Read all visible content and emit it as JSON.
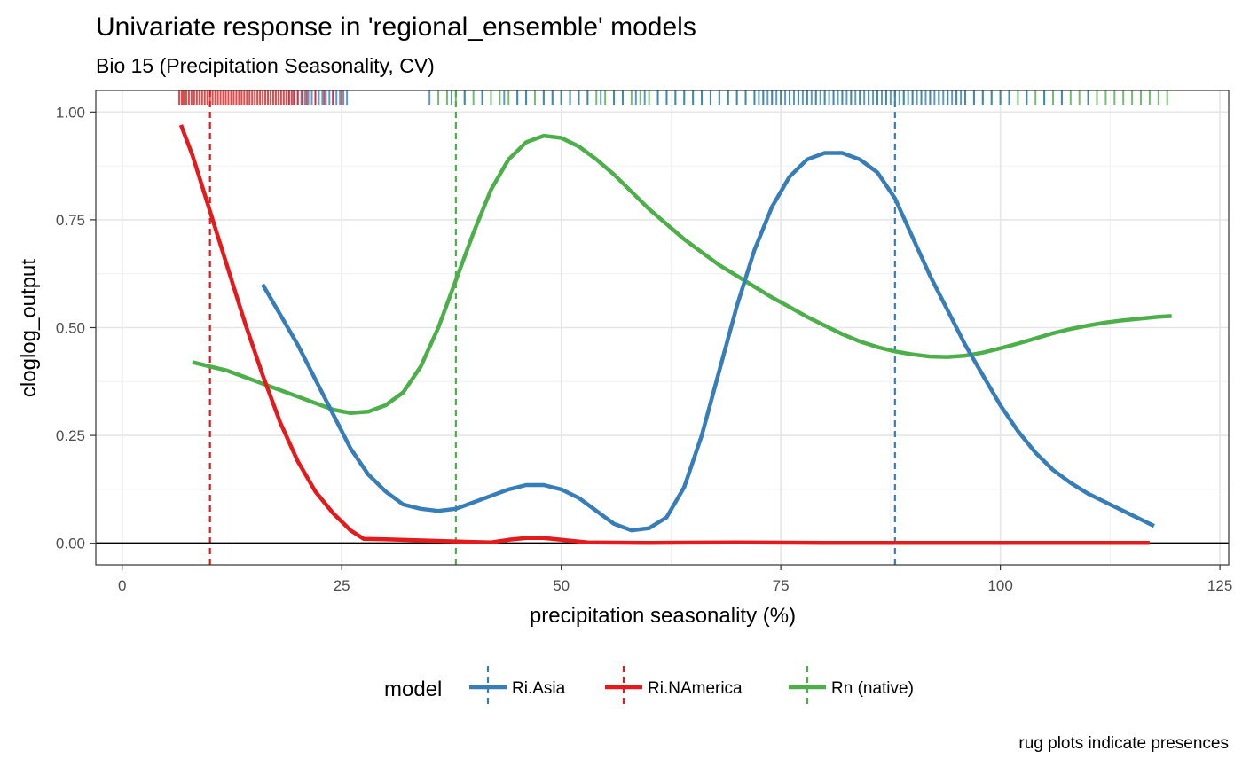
{
  "chart_data": {
    "type": "line",
    "title": "Univariate response in 'regional_ensemble' models",
    "subtitle": "Bio 15 (Precipitation Seasonality, CV)",
    "xlabel": "precipitation seasonality (%)",
    "ylabel": "cloglog_output",
    "caption": "rug plots indicate presences",
    "xlim": [
      -3,
      126
    ],
    "ylim": [
      -0.05,
      1.05
    ],
    "x_ticks": [
      0,
      25,
      50,
      75,
      100,
      125
    ],
    "y_ticks": [
      0.0,
      0.25,
      0.5,
      0.75,
      1.0
    ],
    "x_tick_labels": [
      "0",
      "25",
      "50",
      "75",
      "100",
      "125"
    ],
    "y_tick_labels": [
      "0.00",
      "0.25",
      "0.50",
      "0.75",
      "1.00"
    ],
    "hline": 0,
    "grid": true,
    "legend": {
      "title": "model",
      "position": "bottom"
    },
    "series": [
      {
        "name": "Ri.Asia",
        "color": "#377EB8",
        "threshold": 88,
        "points": [
          [
            16,
            0.6
          ],
          [
            18,
            0.53
          ],
          [
            20,
            0.46
          ],
          [
            22,
            0.38
          ],
          [
            24,
            0.3
          ],
          [
            26,
            0.22
          ],
          [
            28,
            0.16
          ],
          [
            30,
            0.12
          ],
          [
            32,
            0.09
          ],
          [
            34,
            0.08
          ],
          [
            36,
            0.075
          ],
          [
            38,
            0.08
          ],
          [
            40,
            0.095
          ],
          [
            42,
            0.11
          ],
          [
            44,
            0.125
          ],
          [
            46,
            0.135
          ],
          [
            48,
            0.135
          ],
          [
            50,
            0.125
          ],
          [
            52,
            0.105
          ],
          [
            54,
            0.075
          ],
          [
            56,
            0.045
          ],
          [
            58,
            0.03
          ],
          [
            60,
            0.035
          ],
          [
            62,
            0.06
          ],
          [
            64,
            0.13
          ],
          [
            66,
            0.25
          ],
          [
            68,
            0.4
          ],
          [
            70,
            0.55
          ],
          [
            72,
            0.68
          ],
          [
            74,
            0.78
          ],
          [
            76,
            0.85
          ],
          [
            78,
            0.89
          ],
          [
            80,
            0.905
          ],
          [
            82,
            0.905
          ],
          [
            84,
            0.89
          ],
          [
            86,
            0.86
          ],
          [
            88,
            0.8
          ],
          [
            90,
            0.71
          ],
          [
            92,
            0.62
          ],
          [
            94,
            0.54
          ],
          [
            96,
            0.46
          ],
          [
            98,
            0.39
          ],
          [
            100,
            0.32
          ],
          [
            102,
            0.26
          ],
          [
            104,
            0.21
          ],
          [
            106,
            0.17
          ],
          [
            108,
            0.14
          ],
          [
            110,
            0.115
          ],
          [
            112,
            0.095
          ],
          [
            114,
            0.075
          ],
          [
            116,
            0.055
          ],
          [
            117.5,
            0.04
          ]
        ],
        "rug": [
          19,
          19.5,
          20,
          20.4,
          20.8,
          21.2,
          21.6,
          22,
          22.4,
          22.8,
          23.2,
          23.6,
          24,
          24.4,
          24.8,
          25.2,
          25.6,
          35,
          37.5,
          39,
          41,
          43.5,
          45,
          46,
          48,
          49,
          50,
          51,
          52,
          53,
          54.5,
          56,
          57,
          58.5,
          59.5,
          61,
          62,
          63,
          64,
          65,
          66,
          67,
          68,
          69,
          70,
          71,
          72,
          72.5,
          73,
          73.5,
          74,
          74.5,
          75,
          75.5,
          76,
          76.5,
          77,
          77.5,
          78,
          78.5,
          79,
          79.5,
          80,
          80.5,
          81,
          81.5,
          82,
          82.5,
          83,
          83.5,
          84,
          84.5,
          85,
          85.5,
          86,
          86.5,
          87,
          87.5,
          88,
          88.5,
          89,
          89.5,
          90,
          90.5,
          91,
          91.5,
          92,
          92.5,
          93,
          93.5,
          94,
          94.5,
          95,
          95.5,
          96,
          97,
          98,
          99,
          100,
          101,
          103,
          105,
          107,
          110
        ]
      },
      {
        "name": "Ri.NAmerica",
        "color": "#E41A1C",
        "threshold": 10,
        "points": [
          [
            6.7,
            0.97
          ],
          [
            8,
            0.9
          ],
          [
            10,
            0.77
          ],
          [
            12,
            0.64
          ],
          [
            14,
            0.51
          ],
          [
            16,
            0.39
          ],
          [
            18,
            0.28
          ],
          [
            20,
            0.19
          ],
          [
            22,
            0.12
          ],
          [
            24,
            0.07
          ],
          [
            26,
            0.03
          ],
          [
            27.5,
            0.01
          ],
          [
            30,
            0.009
          ],
          [
            35,
            0.006
          ],
          [
            40,
            0.003
          ],
          [
            42,
            0.002
          ],
          [
            44,
            0.008
          ],
          [
            46,
            0.012
          ],
          [
            48,
            0.012
          ],
          [
            50,
            0.008
          ],
          [
            53,
            0.002
          ],
          [
            60,
            0.001
          ],
          [
            70,
            0.002
          ],
          [
            80,
            0.001
          ],
          [
            90,
            0.001
          ],
          [
            100,
            0.001
          ],
          [
            110,
            0.001
          ],
          [
            117,
            0.001
          ]
        ],
        "rug": [
          6.5,
          6.8,
          7,
          7.3,
          7.6,
          7.9,
          8.2,
          8.5,
          8.8,
          9.1,
          9.4,
          9.7,
          10,
          10.3,
          10.6,
          10.9,
          11.2,
          11.5,
          11.8,
          12.1,
          12.4,
          12.7,
          13,
          13.3,
          13.6,
          13.9,
          14.2,
          14.5,
          14.8,
          15.1,
          15.4,
          15.7,
          16,
          16.3,
          16.6,
          16.9,
          17.2,
          17.5,
          17.8,
          18.1,
          18.4,
          18.7,
          19,
          19.3,
          19.6,
          20,
          20.5,
          21,
          22,
          23,
          24,
          25
        ]
      },
      {
        "name": "Rn (native)",
        "color": "#4DAF4A",
        "threshold": 38,
        "points": [
          [
            8,
            0.42
          ],
          [
            10,
            0.41
          ],
          [
            12,
            0.4
          ],
          [
            14,
            0.385
          ],
          [
            16,
            0.37
          ],
          [
            18,
            0.355
          ],
          [
            20,
            0.34
          ],
          [
            22,
            0.325
          ],
          [
            24,
            0.31
          ],
          [
            26,
            0.302
          ],
          [
            28,
            0.305
          ],
          [
            30,
            0.32
          ],
          [
            32,
            0.35
          ],
          [
            34,
            0.41
          ],
          [
            36,
            0.5
          ],
          [
            38,
            0.61
          ],
          [
            40,
            0.72
          ],
          [
            42,
            0.82
          ],
          [
            44,
            0.89
          ],
          [
            46,
            0.93
          ],
          [
            48,
            0.945
          ],
          [
            50,
            0.94
          ],
          [
            52,
            0.92
          ],
          [
            54,
            0.89
          ],
          [
            56,
            0.855
          ],
          [
            58,
            0.815
          ],
          [
            60,
            0.775
          ],
          [
            62,
            0.74
          ],
          [
            64,
            0.705
          ],
          [
            66,
            0.675
          ],
          [
            68,
            0.645
          ],
          [
            70,
            0.62
          ],
          [
            72,
            0.595
          ],
          [
            74,
            0.57
          ],
          [
            76,
            0.548
          ],
          [
            78,
            0.525
          ],
          [
            80,
            0.505
          ],
          [
            82,
            0.485
          ],
          [
            84,
            0.468
          ],
          [
            86,
            0.455
          ],
          [
            88,
            0.445
          ],
          [
            90,
            0.438
          ],
          [
            92,
            0.433
          ],
          [
            94,
            0.432
          ],
          [
            96,
            0.435
          ],
          [
            98,
            0.442
          ],
          [
            100,
            0.452
          ],
          [
            102,
            0.463
          ],
          [
            104,
            0.475
          ],
          [
            106,
            0.487
          ],
          [
            108,
            0.497
          ],
          [
            110,
            0.505
          ],
          [
            112,
            0.512
          ],
          [
            114,
            0.517
          ],
          [
            116,
            0.521
          ],
          [
            118,
            0.525
          ],
          [
            119.5,
            0.527
          ]
        ],
        "rug": [
          36,
          37,
          38,
          39,
          40,
          41,
          42,
          43,
          44,
          45,
          46,
          47,
          48,
          49,
          50,
          51,
          52,
          53,
          54,
          55,
          56,
          57,
          58,
          59,
          60,
          61,
          62,
          63,
          64,
          65,
          66,
          67,
          68,
          69,
          70,
          71,
          72,
          73,
          74,
          75,
          76,
          77,
          78,
          79,
          80,
          81,
          82,
          83,
          84,
          85,
          86,
          87,
          88,
          89,
          90,
          91,
          92,
          93,
          94,
          95,
          96,
          97,
          98,
          99,
          100,
          101,
          102,
          103,
          104,
          105,
          106,
          107,
          108,
          109,
          110,
          111,
          112,
          113,
          114,
          115,
          116,
          117,
          118,
          119
        ]
      }
    ]
  }
}
